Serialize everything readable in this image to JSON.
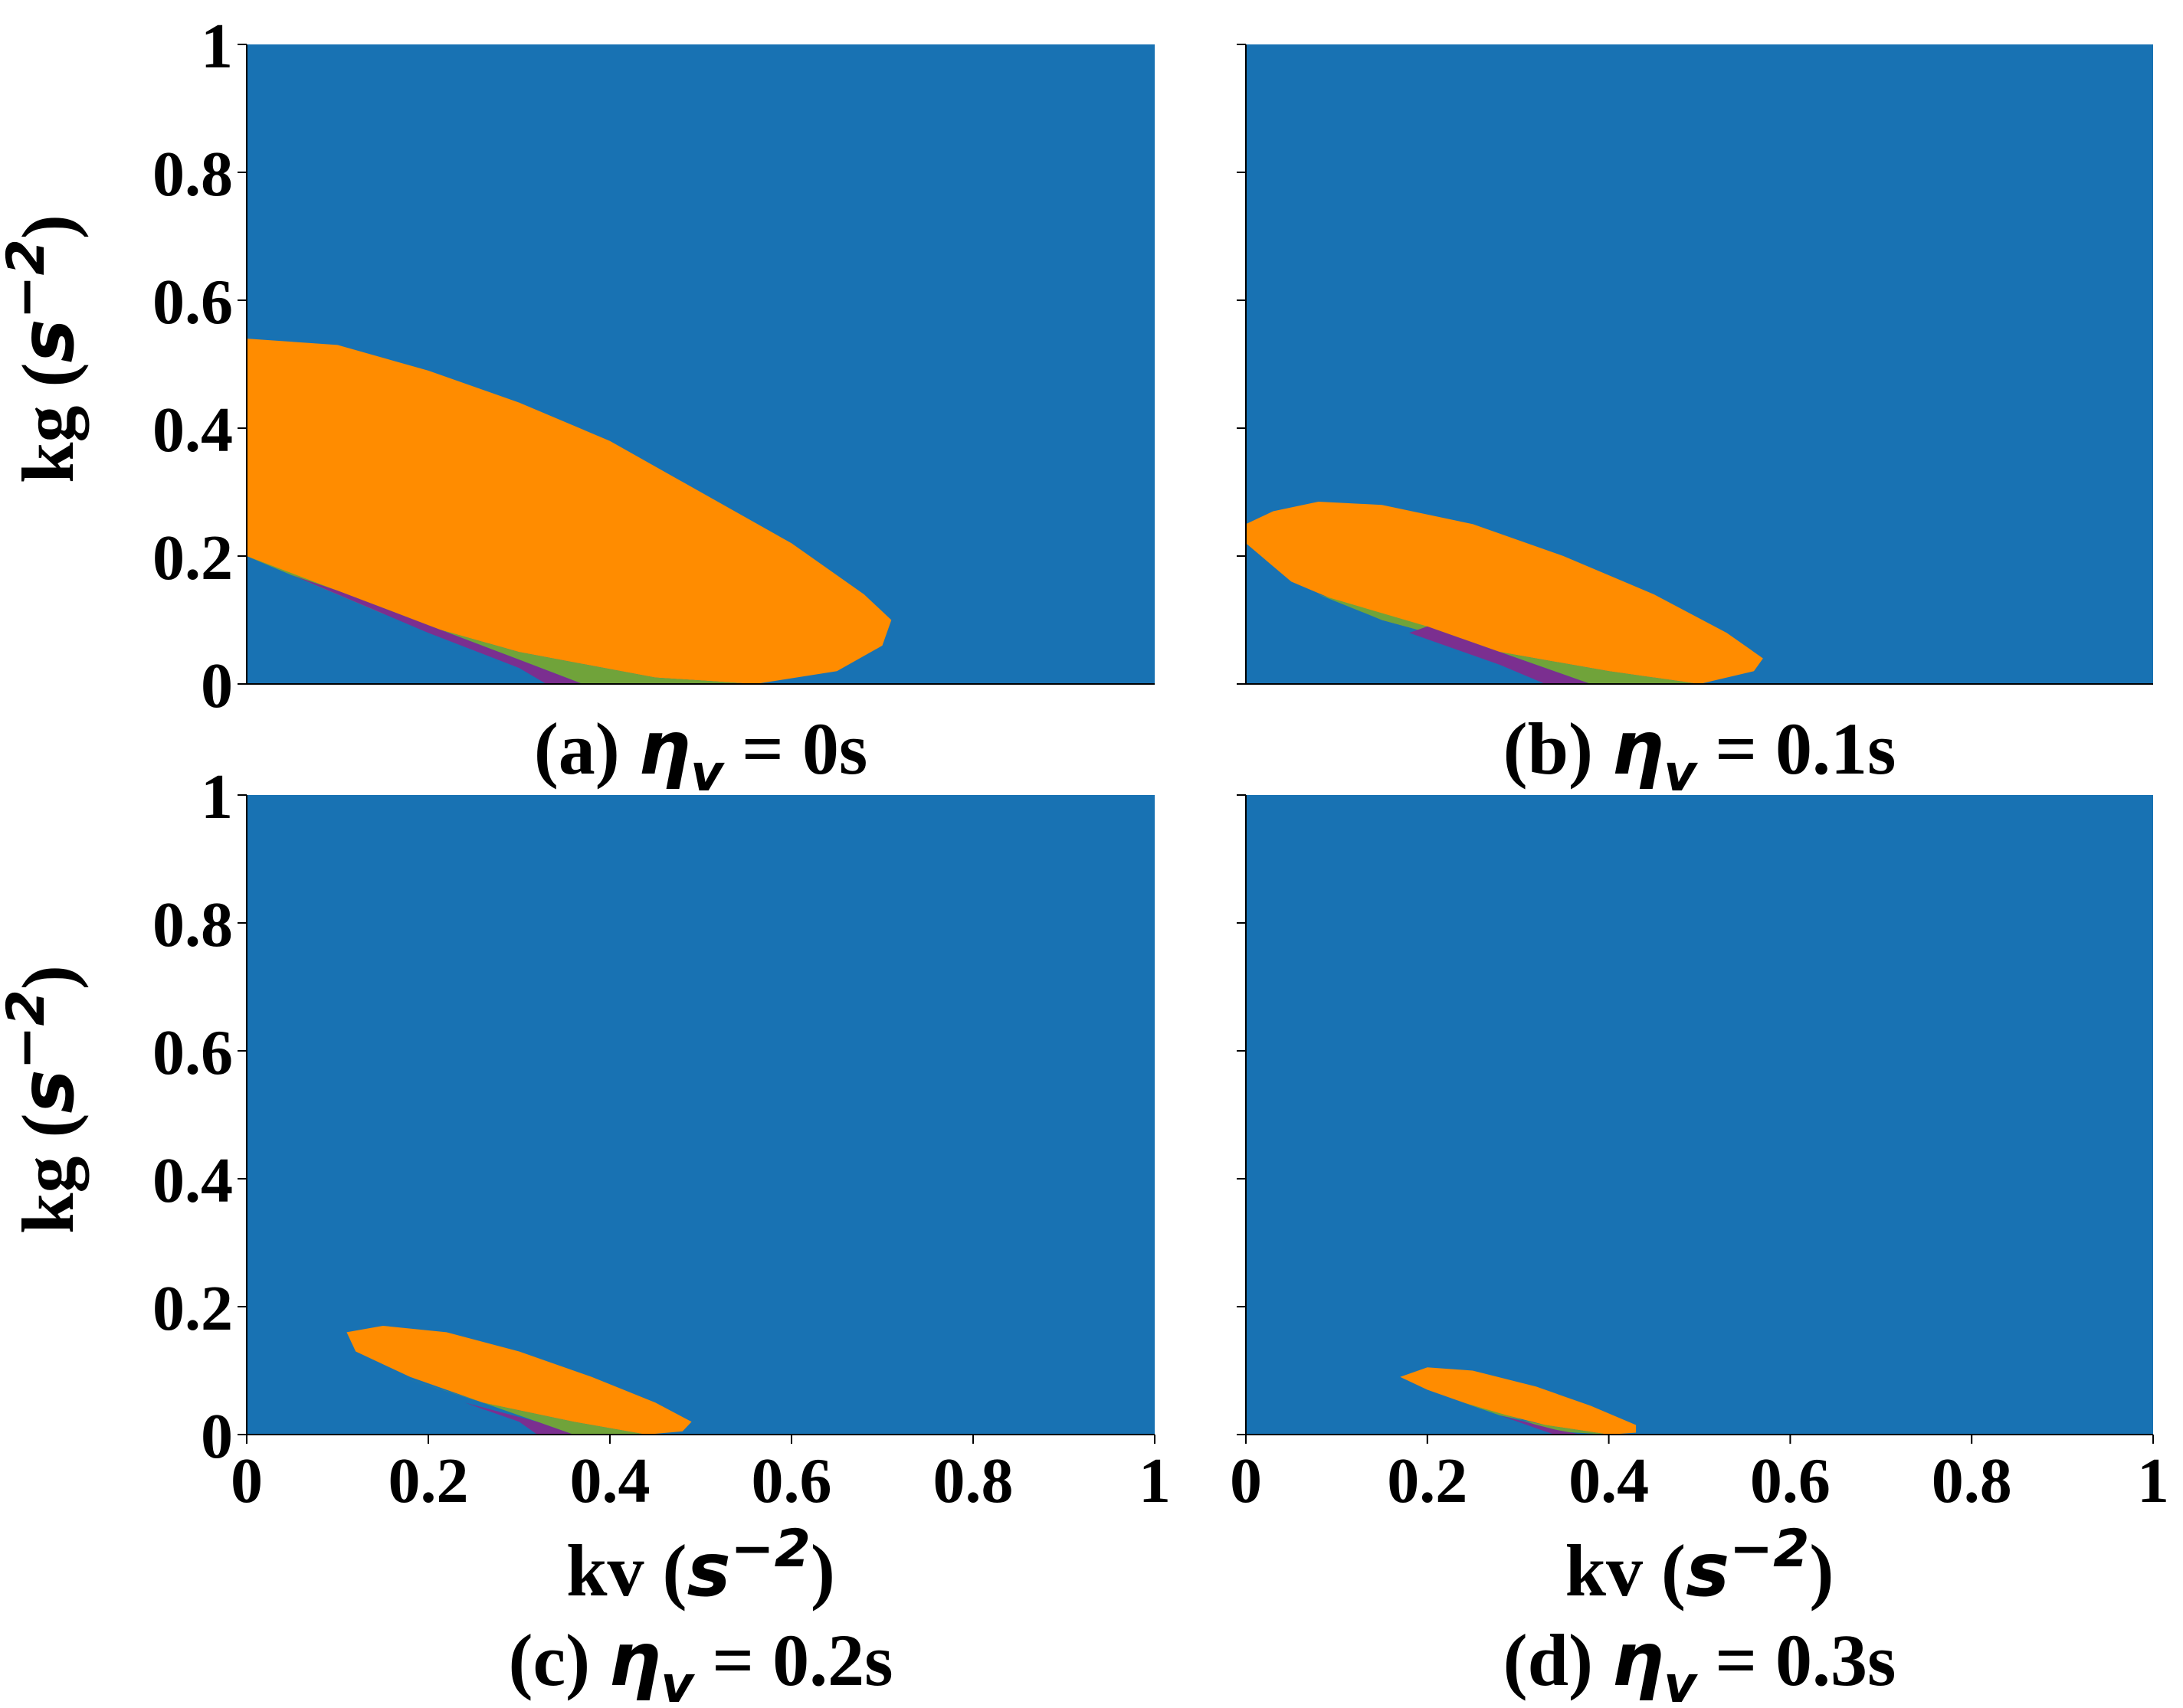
{
  "chart_data": [
    {
      "type": "heatmap",
      "panel": "a",
      "caption": {
        "prefix": "(a) ",
        "symbol": "η",
        "sub": "v",
        "suffix": " = 0s"
      },
      "xlabel": "kv",
      "ylabel": "kg",
      "unit": "s",
      "unit_exp": "−2",
      "xlim": [
        0,
        1
      ],
      "ylim": [
        0,
        1
      ],
      "show_xlabel": false,
      "show_ylabel": true,
      "show_xticks": false,
      "show_yticks": true,
      "background": {
        "fill_key": "blue"
      },
      "regions": [
        {
          "fill_key": "orange",
          "points": [
            [
              0,
              0.54
            ],
            [
              0.1,
              0.53
            ],
            [
              0.2,
              0.49
            ],
            [
              0.3,
              0.44
            ],
            [
              0.4,
              0.38
            ],
            [
              0.5,
              0.3
            ],
            [
              0.6,
              0.22
            ],
            [
              0.68,
              0.14
            ],
            [
              0.71,
              0.1
            ],
            [
              0.7,
              0.06
            ],
            [
              0.65,
              0.02
            ],
            [
              0.56,
              0
            ],
            [
              0.45,
              0.01
            ],
            [
              0.3,
              0.05
            ],
            [
              0.15,
              0.11
            ],
            [
              0,
              0.2
            ]
          ]
        },
        {
          "fill_key": "green",
          "points": [
            [
              0,
              0.2
            ],
            [
              0.1,
              0.146
            ],
            [
              0.2,
              0.092
            ],
            [
              0.3,
              0.038
            ],
            [
              0.37,
              0
            ],
            [
              0.56,
              0
            ],
            [
              0.45,
              0.01
            ],
            [
              0.3,
              0.05
            ],
            [
              0.15,
              0.11
            ]
          ]
        },
        {
          "fill_key": "purple",
          "points": [
            [
              0.05,
              0.17
            ],
            [
              0.2,
              0.08
            ],
            [
              0.3,
              0.025
            ],
            [
              0.33,
              0
            ],
            [
              0.37,
              0
            ],
            [
              0.3,
              0.038
            ],
            [
              0.2,
              0.092
            ],
            [
              0.1,
              0.146
            ]
          ]
        }
      ]
    },
    {
      "type": "heatmap",
      "panel": "b",
      "caption": {
        "prefix": "(b) ",
        "symbol": "η",
        "sub": "v",
        "suffix": " = 0.1s"
      },
      "xlabel": "kv",
      "ylabel": "kg",
      "unit": "s",
      "unit_exp": "−2",
      "xlim": [
        0,
        1
      ],
      "ylim": [
        0,
        1
      ],
      "show_xlabel": false,
      "show_ylabel": false,
      "show_xticks": false,
      "show_yticks": false,
      "background": {
        "fill_key": "blue"
      },
      "regions": [
        {
          "fill_key": "orange",
          "points": [
            [
              0,
              0.25
            ],
            [
              0.03,
              0.27
            ],
            [
              0.08,
              0.285
            ],
            [
              0.15,
              0.28
            ],
            [
              0.25,
              0.25
            ],
            [
              0.35,
              0.2
            ],
            [
              0.45,
              0.14
            ],
            [
              0.53,
              0.08
            ],
            [
              0.57,
              0.04
            ],
            [
              0.56,
              0.02
            ],
            [
              0.5,
              0
            ],
            [
              0.4,
              0.02
            ],
            [
              0.28,
              0.05
            ],
            [
              0.15,
              0.1
            ],
            [
              0.05,
              0.16
            ],
            [
              0,
              0.22
            ]
          ]
        },
        {
          "fill_key": "green",
          "points": [
            [
              0.08,
              0.14
            ],
            [
              0.2,
              0.09
            ],
            [
              0.3,
              0.04
            ],
            [
              0.38,
              0
            ],
            [
              0.5,
              0
            ],
            [
              0.4,
              0.02
            ],
            [
              0.28,
              0.05
            ],
            [
              0.15,
              0.1
            ]
          ]
        },
        {
          "fill_key": "purple",
          "points": [
            [
              0.18,
              0.08
            ],
            [
              0.28,
              0.03
            ],
            [
              0.33,
              0
            ],
            [
              0.38,
              0
            ],
            [
              0.3,
              0.04
            ],
            [
              0.2,
              0.09
            ]
          ]
        }
      ]
    },
    {
      "type": "heatmap",
      "panel": "c",
      "caption": {
        "prefix": "(c) ",
        "symbol": "η",
        "sub": "v",
        "suffix": " = 0.2s"
      },
      "xlabel": "kv",
      "ylabel": "kg",
      "unit": "s",
      "unit_exp": "−2",
      "xlim": [
        0,
        1
      ],
      "ylim": [
        0,
        1
      ],
      "xticks": [
        "0",
        "0.2",
        "0.4",
        "0.6",
        "0.8",
        "1"
      ],
      "show_xlabel": true,
      "show_ylabel": true,
      "show_xticks": true,
      "show_yticks": true,
      "background": {
        "fill_key": "blue"
      },
      "regions": [
        {
          "fill_key": "orange",
          "points": [
            [
              0.11,
              0.16
            ],
            [
              0.15,
              0.17
            ],
            [
              0.22,
              0.16
            ],
            [
              0.3,
              0.13
            ],
            [
              0.38,
              0.09
            ],
            [
              0.45,
              0.05
            ],
            [
              0.49,
              0.02
            ],
            [
              0.48,
              0.005
            ],
            [
              0.44,
              0
            ],
            [
              0.36,
              0.02
            ],
            [
              0.26,
              0.05
            ],
            [
              0.18,
              0.09
            ],
            [
              0.12,
              0.13
            ]
          ]
        },
        {
          "fill_key": "green",
          "points": [
            [
              0.17,
              0.09
            ],
            [
              0.25,
              0.055
            ],
            [
              0.32,
              0.02
            ],
            [
              0.36,
              0
            ],
            [
              0.44,
              0
            ],
            [
              0.36,
              0.02
            ],
            [
              0.26,
              0.05
            ]
          ]
        },
        {
          "fill_key": "purple",
          "points": [
            [
              0.24,
              0.05
            ],
            [
              0.3,
              0.02
            ],
            [
              0.32,
              0
            ],
            [
              0.36,
              0
            ],
            [
              0.32,
              0.02
            ]
          ]
        }
      ]
    },
    {
      "type": "heatmap",
      "panel": "d",
      "caption": {
        "prefix": "(d) ",
        "symbol": "η",
        "sub": "v",
        "suffix": " = 0.3s"
      },
      "xlabel": "kv",
      "ylabel": "kg",
      "unit": "s",
      "unit_exp": "−2",
      "xlim": [
        0,
        1
      ],
      "ylim": [
        0,
        1
      ],
      "xticks": [
        "0",
        "0.2",
        "0.4",
        "0.6",
        "0.8",
        "1"
      ],
      "show_xlabel": true,
      "show_ylabel": false,
      "show_xticks": true,
      "show_yticks": false,
      "background": {
        "fill_key": "blue"
      },
      "regions": [
        {
          "fill_key": "orange",
          "points": [
            [
              0.17,
              0.09
            ],
            [
              0.2,
              0.105
            ],
            [
              0.25,
              0.1
            ],
            [
              0.32,
              0.075
            ],
            [
              0.38,
              0.045
            ],
            [
              0.43,
              0.015
            ],
            [
              0.43,
              0.003
            ],
            [
              0.4,
              0
            ],
            [
              0.33,
              0.015
            ],
            [
              0.26,
              0.04
            ],
            [
              0.2,
              0.07
            ]
          ]
        },
        {
          "fill_key": "green",
          "points": [
            [
              0.24,
              0.05
            ],
            [
              0.3,
              0.025
            ],
            [
              0.34,
              0.005
            ],
            [
              0.4,
              0
            ],
            [
              0.33,
              0.015
            ],
            [
              0.28,
              0.03
            ]
          ]
        },
        {
          "fill_key": "purple",
          "points": [
            [
              0.28,
              0.03
            ],
            [
              0.32,
              0.01
            ],
            [
              0.34,
              0
            ],
            [
              0.37,
              0
            ],
            [
              0.34,
              0.008
            ]
          ]
        }
      ]
    }
  ],
  "yticks": [
    "0",
    "0.2",
    "0.4",
    "0.6",
    "0.8",
    "1"
  ],
  "colors": {
    "blue": "#1872b3",
    "orange": "#ff8c00",
    "green": "#70a33a",
    "purple": "#7b2f90"
  }
}
